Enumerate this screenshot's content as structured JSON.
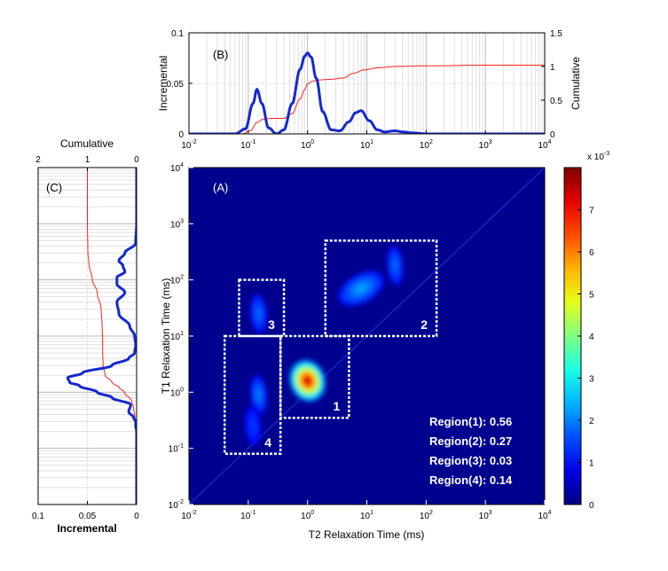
{
  "chart_data": [
    {
      "panel": "(A)",
      "type": "heatmap",
      "xlabel": "T2 Relaxation Time (ms)",
      "ylabel": "T1 Relaxation Time (ms)",
      "x_scale": "log",
      "y_scale": "log",
      "xlim": [
        0.01,
        10000
      ],
      "ylim": [
        0.01,
        10000
      ],
      "x_ticks": [
        "10-2",
        "10-1",
        "100",
        "101",
        "102",
        "103",
        "104"
      ],
      "y_ticks": [
        "10-2",
        "10-1",
        "100",
        "101",
        "102",
        "103",
        "104"
      ],
      "peaks": [
        {
          "t2": 1.0,
          "t1": 1.6,
          "amplitude": 7.9
        },
        {
          "t2": 0.15,
          "t1": 0.9,
          "amplitude": 1.3
        },
        {
          "t2": 0.15,
          "t1": 25,
          "amplitude": 1.1
        },
        {
          "t2": 8,
          "t1": 70,
          "amplitude": 1.6
        },
        {
          "t2": 30,
          "t1": 180,
          "amplitude": 1.1
        },
        {
          "t2": 0.12,
          "t1": 0.25,
          "amplitude": 0.6
        }
      ],
      "regions": [
        {
          "id": "1",
          "t2_range": [
            0.35,
            5
          ],
          "t1_range": [
            0.35,
            10
          ]
        },
        {
          "id": "2",
          "t2_range": [
            2,
            150
          ],
          "t1_range": [
            10,
            500
          ]
        },
        {
          "id": "3",
          "t2_range": [
            0.07,
            0.4
          ],
          "t1_range": [
            10,
            100
          ]
        },
        {
          "id": "4",
          "t2_range": [
            0.04,
            0.35
          ],
          "t1_range": [
            0.08,
            10
          ]
        }
      ],
      "region_labels": [
        "Region(1): 0.56",
        "Region(2): 0.27",
        "Region(3): 0.03",
        "Region(4): 0.14"
      ],
      "colorbar": {
        "label": "x 10-3",
        "min": 0,
        "max": 8,
        "ticks": [
          "0",
          "1",
          "2",
          "3",
          "4",
          "5",
          "6",
          "7"
        ]
      }
    },
    {
      "panel": "(B)",
      "type": "line",
      "xlabel": "",
      "ylabel_left": "Incremental",
      "ylabel_right": "Cumulative",
      "x_scale": "log",
      "xlim": [
        0.01,
        10000
      ],
      "ylim_left": [
        0,
        0.1
      ],
      "ylim_right": [
        0,
        1.5
      ],
      "x_ticks": [
        "10-2",
        "10-1",
        "100",
        "101",
        "102",
        "103",
        "104"
      ],
      "y_ticks_left": [
        "0",
        "0.05",
        "0.1"
      ],
      "y_ticks_right": [
        "0",
        "0.5",
        "1",
        "1.5"
      ],
      "series": [
        {
          "axis": "left",
          "x": [
            0.01,
            0.06,
            0.09,
            0.12,
            0.14,
            0.17,
            0.22,
            0.3,
            0.4,
            0.55,
            0.75,
            0.9,
            1.0,
            1.15,
            1.4,
            1.8,
            2.5,
            3.5,
            5,
            6.5,
            8,
            11,
            15,
            20,
            30,
            40,
            60,
            100,
            1000,
            10000
          ],
          "y": [
            0,
            0,
            0.005,
            0.03,
            0.044,
            0.03,
            0.006,
            0,
            0.004,
            0.03,
            0.064,
            0.077,
            0.08,
            0.076,
            0.055,
            0.022,
            0.004,
            0.003,
            0.012,
            0.021,
            0.023,
            0.013,
            0.004,
            0.002,
            0.003,
            0.002,
            0.001,
            0,
            0,
            0
          ]
        },
        {
          "axis": "right",
          "x": [
            0.01,
            0.08,
            0.11,
            0.14,
            0.18,
            0.25,
            0.4,
            0.55,
            0.75,
            0.9,
            1.0,
            1.2,
            1.5,
            2.5,
            4,
            6,
            9,
            15,
            30,
            100,
            1000,
            10000
          ],
          "y": [
            0,
            0,
            0.05,
            0.17,
            0.22,
            0.23,
            0.23,
            0.3,
            0.52,
            0.66,
            0.74,
            0.78,
            0.8,
            0.81,
            0.83,
            0.9,
            0.95,
            0.98,
            1.0,
            1.01,
            1.02,
            1.02
          ]
        }
      ]
    },
    {
      "panel": "(C)",
      "type": "line",
      "orientation": "vertical",
      "xlabel_bottom": "Incremental",
      "xlabel_top": "Cumulative",
      "y_scale": "log",
      "ylim": [
        0.01,
        10000
      ],
      "xlim_bottom": [
        0.1,
        0
      ],
      "xlim_top": [
        2,
        0
      ],
      "x_ticks_bottom": [
        "0.1",
        "0.05",
        "0"
      ],
      "x_ticks_top": [
        "2",
        "1",
        "0"
      ],
      "series": [
        {
          "axis": "bottom",
          "t1": [
            10000,
            1000,
            450,
            300,
            220,
            180,
            140,
            110,
            85,
            60,
            40,
            25,
            15,
            10,
            7,
            5,
            4,
            3,
            2.2,
            1.8,
            1.5,
            1.3,
            1.0,
            0.8,
            0.6,
            0.45,
            0.35,
            0.3,
            0.25,
            0.2,
            0.1,
            0.01
          ],
          "y": [
            0,
            0,
            0.001,
            0.012,
            0.018,
            0.014,
            0.012,
            0.02,
            0.02,
            0.012,
            0.02,
            0.018,
            0.007,
            0.002,
            0.001,
            0.002,
            0.008,
            0.025,
            0.055,
            0.07,
            0.068,
            0.058,
            0.04,
            0.025,
            0.006,
            0.008,
            0.003,
            0.001,
            0.001,
            0,
            0,
            0
          ]
        },
        {
          "axis": "top",
          "t1": [
            10000,
            1000,
            300,
            200,
            100,
            60,
            30,
            15,
            8,
            5,
            3,
            2,
            1.5,
            1.2,
            1,
            0.7,
            0.5,
            0.4,
            0.3,
            0.2,
            0.1,
            0.01
          ],
          "y": [
            1.0,
            1.0,
            0.99,
            0.97,
            0.9,
            0.8,
            0.72,
            0.7,
            0.69,
            0.69,
            0.68,
            0.64,
            0.5,
            0.35,
            0.25,
            0.1,
            0.06,
            0.04,
            0.02,
            0.01,
            0,
            0
          ]
        }
      ]
    }
  ]
}
